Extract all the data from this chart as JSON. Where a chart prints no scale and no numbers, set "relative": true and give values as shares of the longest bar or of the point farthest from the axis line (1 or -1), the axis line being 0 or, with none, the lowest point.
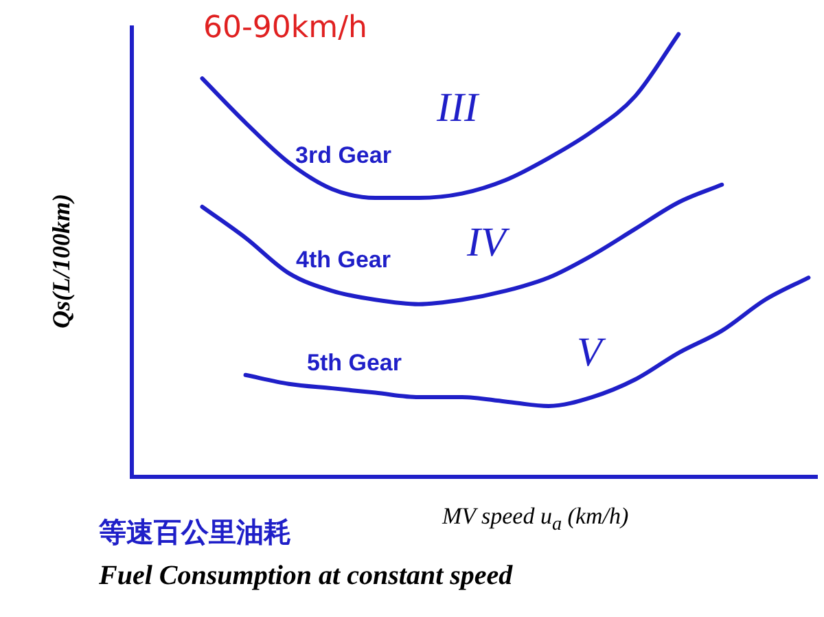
{
  "chart_data": {
    "type": "line",
    "relative": true,
    "title": "60-90km/h",
    "xlabel": "MV speed u$_{a}$ (km/h)",
    "ylabel": "Qs(L/100km)",
    "categories": [
      null,
      null,
      null,
      null,
      null,
      null,
      null,
      null,
      null,
      null,
      null,
      null,
      null,
      null,
      null
    ],
    "series": [
      {
        "name": "3rd Gear",
        "color": "#1f1fc8",
        "values": [
          0.9,
          0.8,
          0.71,
          0.65,
          0.63,
          0.63,
          0.64,
          0.67,
          0.72,
          0.78,
          0.86,
          1,
          null,
          null,
          null
        ]
      },
      {
        "name": "4th Gear",
        "color": "#1f1fc8",
        "values": [
          0.61,
          0.54,
          0.46,
          0.42,
          0.4,
          0.39,
          0.4,
          0.42,
          0.45,
          0.5,
          0.56,
          0.62,
          0.66,
          null,
          null
        ]
      },
      {
        "name": "5th Gear",
        "color": "#1f1fc8",
        "values": [
          null,
          0.23,
          0.21,
          0.2,
          0.19,
          0.18,
          0.18,
          0.17,
          0.16,
          0.18,
          0.22,
          0.28,
          0.33,
          0.4,
          0.45
        ]
      }
    ],
    "legend": false,
    "marker": "none",
    "line_style": "solid",
    "grid": false,
    "annotations": [
      "III",
      "IV",
      "V",
      "等速百公里油耗",
      "Fuel Consumption at constant speed"
    ]
  }
}
